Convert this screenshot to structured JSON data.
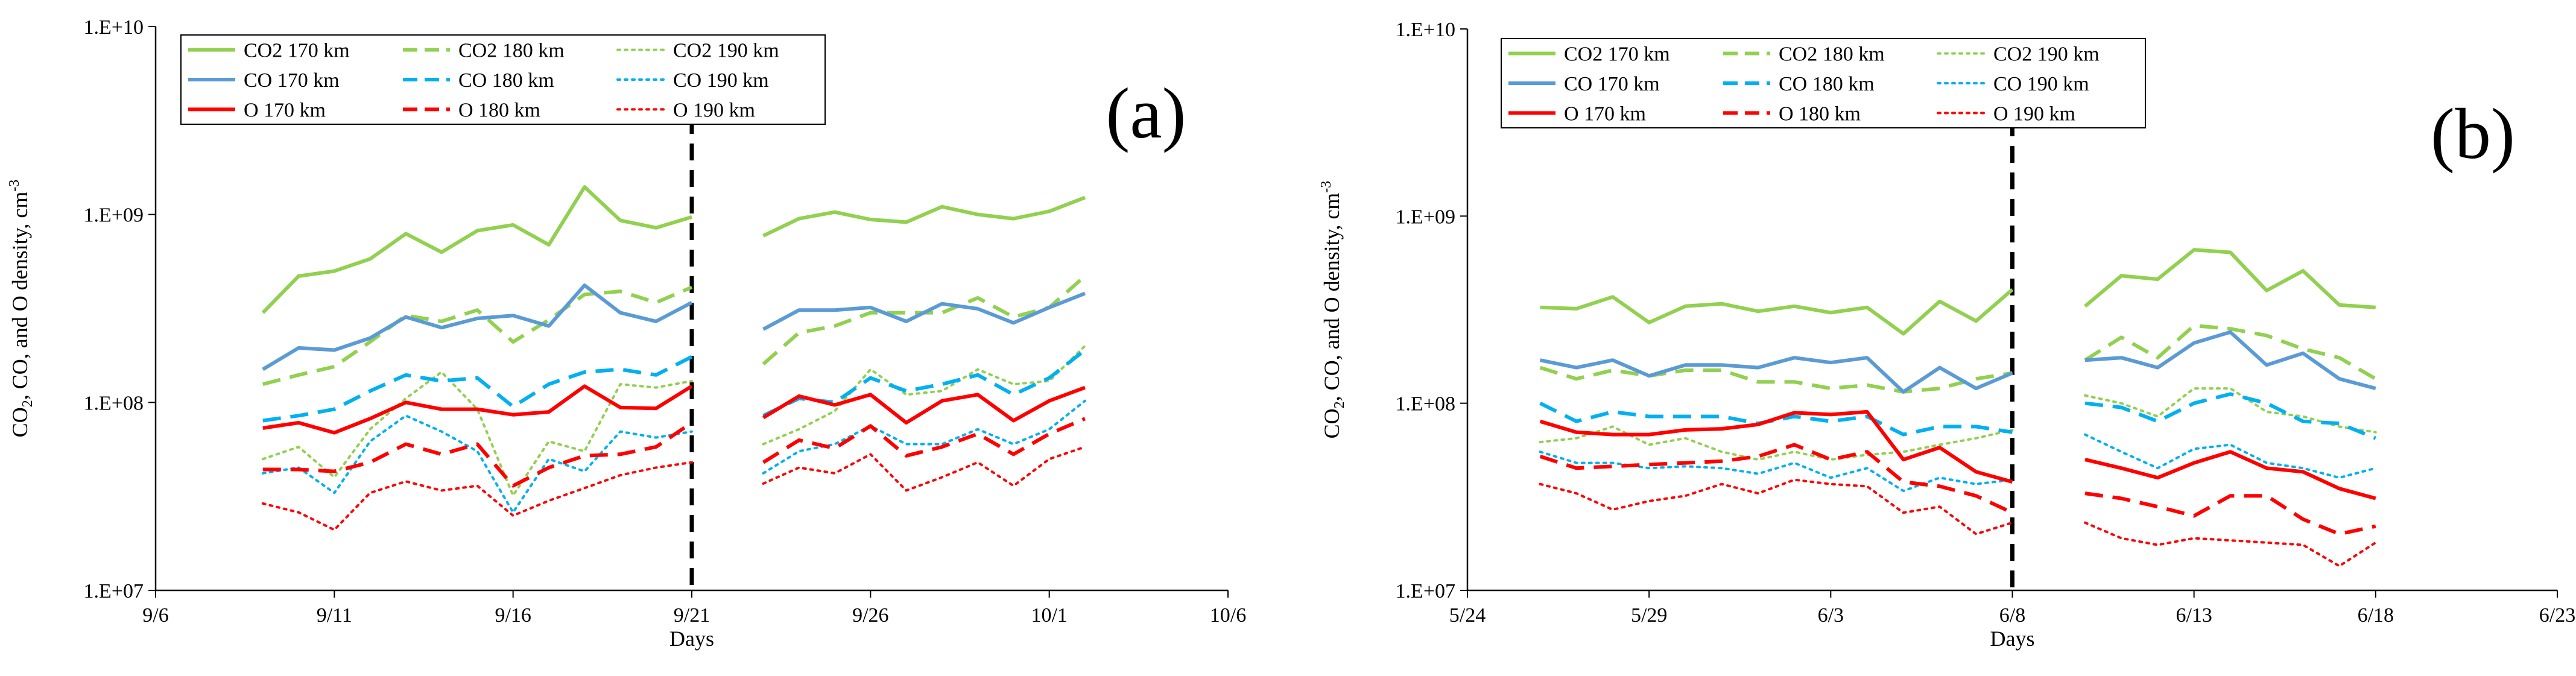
{
  "colors": {
    "co2": "#92D050",
    "co": "#5B9BD5",
    "co_dash": "#00B0F0",
    "o": "#FF0000",
    "axis": "#000000",
    "grid": "#d9d9d9"
  },
  "chart_data": [
    {
      "type": "line",
      "panel": "(a)",
      "title": "",
      "xlabel": "Days",
      "ylabel": "CO2, CO, and O density, cm-3",
      "ylabel_parts": {
        "pre1": "CO",
        "sub1": "2",
        "pre2": ", CO, and O density, cm",
        "sup": "-3"
      },
      "yscale": "log",
      "ylim": [
        10000000.0,
        10000000000.0
      ],
      "ytick_values": [
        10000000.0,
        100000000.0,
        1000000000.0,
        10000000000.0
      ],
      "ytick_labels": [
        "1.E+07",
        "1.E+08",
        "1.E+09",
        "1.E+10"
      ],
      "xlim": [
        0,
        30
      ],
      "xtick_values": [
        0,
        5,
        10,
        15,
        20,
        25,
        30
      ],
      "xtick_labels": [
        "9/6",
        "9/11",
        "9/16",
        "9/21",
        "9/26",
        "10/1",
        "10/6"
      ],
      "divider_x": 15,
      "legend_position": "top-left",
      "x": [
        3,
        4,
        5,
        6,
        7,
        8,
        9,
        10,
        11,
        12,
        13,
        14,
        15,
        16,
        17,
        18,
        19,
        20,
        21,
        22,
        23,
        24,
        25,
        26
      ],
      "series": [
        {
          "name": "CO2 170 km",
          "species": "co2",
          "style": "solid",
          "values": [
            300000000.0,
            470000000.0,
            500000000.0,
            580000000.0,
            790000000.0,
            630000000.0,
            820000000.0,
            880000000.0,
            690000000.0,
            1400000000.0,
            930000000.0,
            850000000.0,
            970000000.0,
            null,
            770000000.0,
            950000000.0,
            1030000000.0,
            940000000.0,
            910000000.0,
            1100000000.0,
            1000000000.0,
            950000000.0,
            1040000000.0,
            1230000000.0
          ]
        },
        {
          "name": "CO2 180 km",
          "species": "co2",
          "style": "dash",
          "values": [
            125000000.0,
            140000000.0,
            155000000.0,
            210000000.0,
            290000000.0,
            270000000.0,
            310000000.0,
            210000000.0,
            275000000.0,
            375000000.0,
            390000000.0,
            340000000.0,
            410000000.0,
            null,
            160000000.0,
            235000000.0,
            255000000.0,
            300000000.0,
            300000000.0,
            300000000.0,
            360000000.0,
            285000000.0,
            320000000.0,
            470000000.0
          ]
        },
        {
          "name": "CO2 190 km",
          "species": "co2",
          "style": "dot",
          "values": [
            50000000.0,
            58000000.0,
            40000000.0,
            72000000.0,
            105000000.0,
            145000000.0,
            92000000.0,
            32000000.0,
            62000000.0,
            55000000.0,
            125000000.0,
            120000000.0,
            130000000.0,
            null,
            60000000.0,
            72000000.0,
            90000000.0,
            150000000.0,
            110000000.0,
            115000000.0,
            150000000.0,
            125000000.0,
            130000000.0,
            200000000.0
          ]
        },
        {
          "name": "CO 170 km",
          "species": "co",
          "style": "solid",
          "values": [
            150000000.0,
            195000000.0,
            190000000.0,
            220000000.0,
            285000000.0,
            250000000.0,
            280000000.0,
            290000000.0,
            255000000.0,
            420000000.0,
            300000000.0,
            270000000.0,
            340000000.0,
            null,
            245000000.0,
            310000000.0,
            310000000.0,
            320000000.0,
            270000000.0,
            335000000.0,
            315000000.0,
            265000000.0,
            320000000.0,
            380000000.0
          ]
        },
        {
          "name": "CO 180 km",
          "species": "co",
          "style": "dash",
          "values": [
            80000000.0,
            85000000.0,
            92000000.0,
            115000000.0,
            140000000.0,
            130000000.0,
            135000000.0,
            95000000.0,
            125000000.0,
            145000000.0,
            150000000.0,
            140000000.0,
            175000000.0,
            null,
            85000000.0,
            105000000.0,
            100000000.0,
            135000000.0,
            115000000.0,
            125000000.0,
            140000000.0,
            110000000.0,
            135000000.0,
            190000000.0
          ]
        },
        {
          "name": "CO 190 km",
          "species": "co",
          "style": "dot",
          "values": [
            42000000.0,
            45000000.0,
            33000000.0,
            62000000.0,
            85000000.0,
            70000000.0,
            55000000.0,
            26000000.0,
            50000000.0,
            43000000.0,
            70000000.0,
            65000000.0,
            70000000.0,
            null,
            42000000.0,
            55000000.0,
            60000000.0,
            75000000.0,
            60000000.0,
            60000000.0,
            72000000.0,
            60000000.0,
            72000000.0,
            102000000.0
          ]
        },
        {
          "name": "O 170 km",
          "species": "o",
          "style": "solid",
          "values": [
            73000000.0,
            78000000.0,
            69000000.0,
            82000000.0,
            100000000.0,
            92000000.0,
            92000000.0,
            86000000.0,
            89000000.0,
            122000000.0,
            94000000.0,
            93000000.0,
            122000000.0,
            null,
            83000000.0,
            108000000.0,
            97000000.0,
            110000000.0,
            78000000.0,
            102000000.0,
            110000000.0,
            80000000.0,
            102000000.0,
            120000000.0
          ]
        },
        {
          "name": "O 180 km",
          "species": "o",
          "style": "dash",
          "values": [
            44000000.0,
            44000000.0,
            43000000.0,
            48000000.0,
            60000000.0,
            53000000.0,
            60000000.0,
            36000000.0,
            45000000.0,
            52000000.0,
            53000000.0,
            58000000.0,
            78000000.0,
            null,
            48000000.0,
            63000000.0,
            57000000.0,
            75000000.0,
            52000000.0,
            58000000.0,
            68000000.0,
            53000000.0,
            68000000.0,
            82000000.0
          ]
        },
        {
          "name": "O 190 km",
          "species": "o",
          "style": "dot",
          "values": [
            29000000.0,
            26000000.0,
            21000000.0,
            33000000.0,
            38000000.0,
            34000000.0,
            36000000.0,
            25000000.0,
            30000000.0,
            35000000.0,
            41000000.0,
            45000000.0,
            48000000.0,
            null,
            37000000.0,
            45000000.0,
            42000000.0,
            53000000.0,
            34000000.0,
            40000000.0,
            48000000.0,
            36000000.0,
            50000000.0,
            58000000.0
          ]
        }
      ]
    },
    {
      "type": "line",
      "panel": "(b)",
      "title": "",
      "xlabel": "Days",
      "ylabel": "CO2, CO, and O density, cm-3",
      "ylabel_parts": {
        "pre1": "CO",
        "sub1": "2",
        "pre2": ", CO, and O density, cm",
        "sup": "-3"
      },
      "yscale": "log",
      "ylim": [
        10000000.0,
        10000000000.0
      ],
      "ytick_values": [
        10000000.0,
        100000000.0,
        1000000000.0,
        10000000000.0
      ],
      "ytick_labels": [
        "1.E+07",
        "1.E+08",
        "1.E+09",
        "1.E+10"
      ],
      "xlim": [
        0,
        30
      ],
      "xtick_values": [
        0,
        5,
        10,
        15,
        20,
        25,
        30
      ],
      "xtick_labels": [
        "5/24",
        "5/29",
        "6/3",
        "6/8",
        "6/13",
        "6/18",
        "6/23"
      ],
      "divider_x": 15,
      "legend_position": "top-left",
      "x": [
        2,
        3,
        4,
        5,
        6,
        7,
        8,
        9,
        10,
        11,
        12,
        13,
        14,
        15,
        16,
        17,
        18,
        19,
        20,
        21,
        22,
        23,
        24,
        25
      ],
      "series": [
        {
          "name": "CO2 170 km",
          "species": "co2",
          "style": "solid",
          "values": [
            325000000.0,
            320000000.0,
            370000000.0,
            270000000.0,
            330000000.0,
            340000000.0,
            310000000.0,
            330000000.0,
            305000000.0,
            325000000.0,
            235000000.0,
            350000000.0,
            275000000.0,
            405000000.0,
            null,
            330000000.0,
            480000000.0,
            460000000.0,
            660000000.0,
            640000000.0,
            400000000.0,
            510000000.0,
            335000000.0,
            325000000.0
          ]
        },
        {
          "name": "CO2 180 km",
          "species": "co2",
          "style": "dash",
          "values": [
            155000000.0,
            135000000.0,
            150000000.0,
            140000000.0,
            150000000.0,
            150000000.0,
            130000000.0,
            130000000.0,
            120000000.0,
            125000000.0,
            115000000.0,
            120000000.0,
            135000000.0,
            145000000.0,
            null,
            170000000.0,
            225000000.0,
            175000000.0,
            260000000.0,
            250000000.0,
            230000000.0,
            195000000.0,
            175000000.0,
            135000000.0
          ]
        },
        {
          "name": "CO2 190 km",
          "species": "co2",
          "style": "dot",
          "values": [
            62000000.0,
            65000000.0,
            75000000.0,
            60000000.0,
            65000000.0,
            55000000.0,
            50000000.0,
            55000000.0,
            50000000.0,
            53000000.0,
            55000000.0,
            60000000.0,
            65000000.0,
            72000000.0,
            null,
            110000000.0,
            100000000.0,
            85000000.0,
            120000000.0,
            120000000.0,
            90000000.0,
            85000000.0,
            75000000.0,
            70000000.0
          ]
        },
        {
          "name": "CO 170 km",
          "species": "co",
          "style": "solid",
          "values": [
            170000000.0,
            155000000.0,
            170000000.0,
            140000000.0,
            160000000.0,
            160000000.0,
            155000000.0,
            175000000.0,
            165000000.0,
            175000000.0,
            115000000.0,
            155000000.0,
            120000000.0,
            145000000.0,
            null,
            170000000.0,
            175000000.0,
            155000000.0,
            210000000.0,
            240000000.0,
            160000000.0,
            185000000.0,
            135000000.0,
            120000000.0
          ]
        },
        {
          "name": "CO 180 km",
          "species": "co",
          "style": "dash",
          "values": [
            100000000.0,
            80000000.0,
            90000000.0,
            85000000.0,
            85000000.0,
            85000000.0,
            78000000.0,
            85000000.0,
            80000000.0,
            85000000.0,
            68000000.0,
            75000000.0,
            75000000.0,
            70000000.0,
            null,
            100000000.0,
            95000000.0,
            80000000.0,
            100000000.0,
            112000000.0,
            100000000.0,
            80000000.0,
            78000000.0,
            65000000.0
          ]
        },
        {
          "name": "CO 190 km",
          "species": "co",
          "style": "dot",
          "values": [
            55000000.0,
            48000000.0,
            48000000.0,
            45000000.0,
            46000000.0,
            45000000.0,
            42000000.0,
            48000000.0,
            40000000.0,
            45000000.0,
            34000000.0,
            40000000.0,
            37000000.0,
            39000000.0,
            null,
            68000000.0,
            55000000.0,
            45000000.0,
            57000000.0,
            60000000.0,
            48000000.0,
            45000000.0,
            40000000.0,
            45000000.0
          ]
        },
        {
          "name": "O 170 km",
          "species": "o",
          "style": "solid",
          "values": [
            80000000.0,
            70000000.0,
            68000000.0,
            68000000.0,
            72000000.0,
            73000000.0,
            77000000.0,
            89000000.0,
            87000000.0,
            90000000.0,
            50000000.0,
            58000000.0,
            43000000.0,
            38000000.0,
            null,
            50000000.0,
            45000000.0,
            40000000.0,
            48000000.0,
            55000000.0,
            45000000.0,
            43000000.0,
            35000000.0,
            31000000.0
          ]
        },
        {
          "name": "O 180 km",
          "species": "o",
          "style": "dash",
          "values": [
            52000000.0,
            45000000.0,
            46000000.0,
            47000000.0,
            48000000.0,
            49000000.0,
            52000000.0,
            60000000.0,
            50000000.0,
            55000000.0,
            38000000.0,
            36000000.0,
            32000000.0,
            26000000.0,
            null,
            33000000.0,
            31000000.0,
            28000000.0,
            25000000.0,
            32000000.0,
            32000000.0,
            24000000.0,
            20000000.0,
            22000000.0
          ]
        },
        {
          "name": "O 190 km",
          "species": "o",
          "style": "dot",
          "values": [
            37000000.0,
            33000000.0,
            27000000.0,
            30000000.0,
            32000000.0,
            37000000.0,
            33000000.0,
            39000000.0,
            37000000.0,
            36000000.0,
            26000000.0,
            28000000.0,
            20000000.0,
            23000000.0,
            null,
            23000000.0,
            19000000.0,
            17500000.0,
            19000000.0,
            18500000.0,
            18000000.0,
            17500000.0,
            13500000.0,
            18000000.0
          ]
        }
      ]
    }
  ]
}
